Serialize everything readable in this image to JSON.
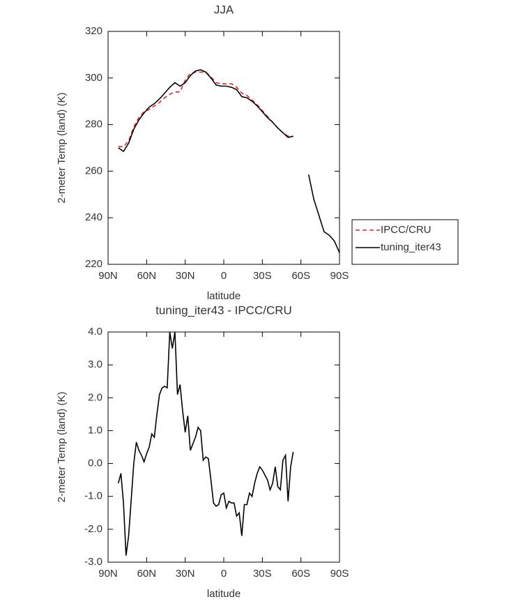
{
  "chart_data": [
    {
      "type": "line",
      "title": "JJA",
      "xlabel": "latitude",
      "ylabel": "2-meter Temp (land) (K)",
      "x": [
        82,
        78,
        74,
        70,
        66,
        62,
        58,
        54,
        50,
        46,
        42,
        38,
        34,
        30,
        26,
        22,
        18,
        14,
        10,
        6,
        2,
        -2,
        -6,
        -10,
        -14,
        -18,
        -22,
        -26,
        -30,
        -34,
        -38,
        -42,
        -46,
        -50,
        -54,
        -58,
        -62,
        -66,
        -70,
        -74,
        -78,
        -82,
        -86,
        -90
      ],
      "series": [
        {
          "name": "IPCC/CRU",
          "color": "#e8202a",
          "line_style": "dashed",
          "values": [
            270.5,
            270.5,
            273,
            279,
            283,
            285.5,
            286.5,
            288,
            289.5,
            291.5,
            293,
            294,
            294,
            299,
            302,
            302.5,
            302.5,
            302.5,
            300.5,
            298,
            297.5,
            297.5,
            297.5,
            296,
            293.5,
            292.5,
            290.5,
            288.5,
            286,
            283.5,
            281,
            278.5,
            276.5,
            275,
            275,
            null,
            null,
            null,
            null,
            null,
            null,
            null,
            null,
            null
          ]
        },
        {
          "name": "tuning_iter43",
          "color": "#000000",
          "line_style": "solid",
          "values": [
            270,
            268.5,
            272,
            278,
            282,
            285,
            287.5,
            289,
            291,
            293.5,
            296,
            298,
            296.5,
            298,
            301,
            303,
            303.5,
            302.5,
            300,
            297,
            296.5,
            296.5,
            296,
            295,
            292,
            291.5,
            290,
            288,
            285.5,
            283,
            281,
            278.5,
            276.5,
            274.5,
            275,
            null,
            null,
            258.5,
            248,
            241,
            234,
            232.5,
            230,
            225
          ]
        }
      ],
      "xlim": [
        90,
        -90
      ],
      "xticks": [
        {
          "value": 90,
          "label": "90N"
        },
        {
          "value": 60,
          "label": "60N"
        },
        {
          "value": 30,
          "label": "30N"
        },
        0,
        {
          "value": -30,
          "label": "30S"
        },
        {
          "value": -60,
          "label": "60S"
        },
        {
          "value": -90,
          "label": "90S"
        }
      ],
      "ylim": [
        220,
        320
      ],
      "yticks": [
        220,
        240,
        260,
        280,
        300,
        320
      ],
      "legend": "right"
    },
    {
      "type": "line",
      "title": "tuning_iter43 - IPCC/CRU",
      "xlabel": "latitude",
      "ylabel": "2-meter Temp (land) (K)",
      "x": [
        82,
        80,
        78,
        76,
        74,
        72,
        70,
        68,
        66,
        64,
        62,
        60,
        58,
        56,
        54,
        52,
        50,
        48,
        46,
        44,
        42,
        40,
        38,
        36,
        34,
        32,
        30,
        28,
        26,
        24,
        22,
        20,
        18,
        16,
        14,
        12,
        10,
        8,
        6,
        4,
        2,
        0,
        -2,
        -4,
        -6,
        -8,
        -10,
        -12,
        -14,
        -16,
        -18,
        -20,
        -22,
        -24,
        -26,
        -28,
        -30,
        -32,
        -34,
        -36,
        -38,
        -40,
        -42,
        -44,
        -46,
        -48,
        -50,
        -52,
        -54
      ],
      "values": [
        -0.6,
        -0.3,
        -1.2,
        -2.8,
        -2.2,
        -1.1,
        0.0,
        0.65,
        0.4,
        0.25,
        0.05,
        0.3,
        0.5,
        0.9,
        0.8,
        1.5,
        2.1,
        2.3,
        2.35,
        2.3,
        4.0,
        3.5,
        4.0,
        2.1,
        2.4,
        1.6,
        0.95,
        1.45,
        0.4,
        0.6,
        0.8,
        1.1,
        1.0,
        0.1,
        0.2,
        0.15,
        -0.5,
        -1.2,
        -1.3,
        -1.25,
        -0.95,
        -0.9,
        -1.35,
        -1.15,
        -1.2,
        -1.2,
        -1.6,
        -1.5,
        -2.2,
        -1.25,
        -1.25,
        -0.9,
        -1.0,
        -0.6,
        -0.3,
        -0.1,
        -0.2,
        -0.35,
        -0.5,
        -0.8,
        -0.6,
        -0.1,
        -0.7,
        -0.8,
        0.1,
        0.25,
        -1.15,
        -0.1,
        0.35
      ],
      "color": "#000000",
      "xlim": [
        90,
        -90
      ],
      "xticks": [
        {
          "value": 90,
          "label": "90N"
        },
        {
          "value": 60,
          "label": "60N"
        },
        {
          "value": 30,
          "label": "30N"
        },
        0,
        {
          "value": -30,
          "label": "30S"
        },
        {
          "value": -60,
          "label": "60S"
        },
        {
          "value": -90,
          "label": "90S"
        }
      ],
      "ylim": [
        -3,
        4
      ],
      "yticks": [
        {
          "value": -3,
          "label": "-3.0"
        },
        {
          "value": -2,
          "label": "-2.0"
        },
        {
          "value": -1,
          "label": "-1.0"
        },
        {
          "value": 0,
          "label": "0.0"
        },
        {
          "value": 1,
          "label": "1.0"
        },
        {
          "value": 2,
          "label": "2.0"
        },
        {
          "value": 3,
          "label": "3.0"
        },
        {
          "value": 4,
          "label": "4.0"
        }
      ]
    }
  ]
}
